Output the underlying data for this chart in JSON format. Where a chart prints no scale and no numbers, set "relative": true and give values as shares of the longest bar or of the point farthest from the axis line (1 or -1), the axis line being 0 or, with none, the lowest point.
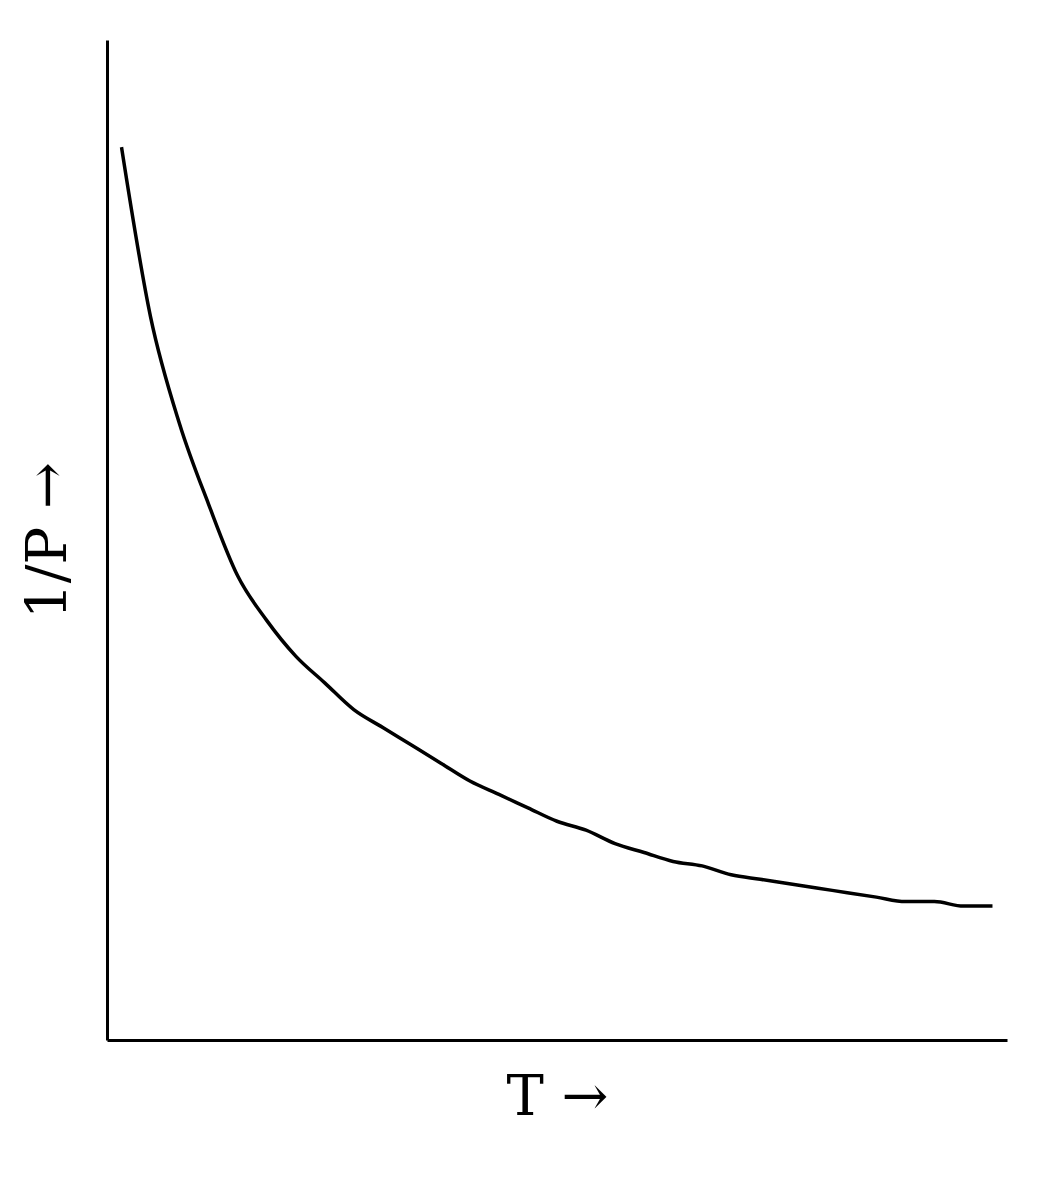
{
  "chart_data": {
    "type": "line",
    "relative": true,
    "xlabel": "T →",
    "ylabel": "1/P →",
    "color": "#000000",
    "categories": [
      null,
      null,
      null,
      null,
      null,
      null,
      null,
      null,
      null,
      null,
      null,
      null,
      null,
      null,
      null,
      null,
      null,
      null,
      null,
      null,
      null,
      null,
      null,
      null,
      null,
      null,
      null,
      null,
      null,
      null,
      null
    ],
    "values": [
      1.0,
      0.81,
      0.69,
      0.6,
      0.52,
      0.47,
      0.43,
      0.4,
      0.37,
      0.35,
      0.33,
      0.31,
      0.29,
      0.275,
      0.26,
      0.245,
      0.235,
      0.22,
      0.21,
      0.2,
      0.195,
      0.185,
      0.18,
      0.175,
      0.17,
      0.165,
      0.16,
      0.155,
      0.155,
      0.15,
      0.15
    ]
  }
}
